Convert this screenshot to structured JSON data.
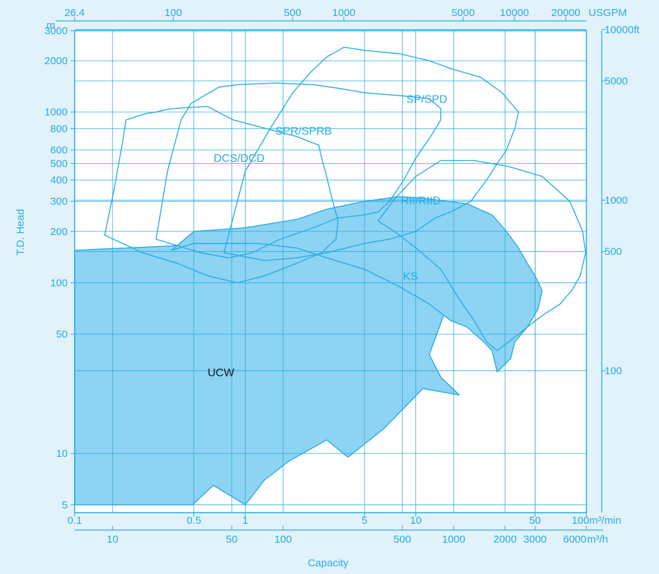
{
  "chart_data": {
    "type": "area",
    "colors": {
      "background": "#e1f2fa",
      "plot_background": "#ffffff",
      "line": "#29abe2",
      "fill": "#8dd3f3",
      "axis_text": "#29abe2",
      "dark_text": "#1a1a1a"
    },
    "x_axis_flow_m3min": {
      "scale": "log",
      "range": [
        0.1,
        100
      ],
      "ticks": [
        {
          "value": 0.1,
          "label": "0.1"
        },
        {
          "value": 0.5,
          "label": "0.5"
        },
        {
          "value": 1,
          "label": "1"
        },
        {
          "value": 5,
          "label": "5"
        },
        {
          "value": 10,
          "label": "10"
        },
        {
          "value": 50,
          "label": "50"
        },
        {
          "value": 100,
          "label": "100"
        }
      ],
      "unit": "m³/min"
    },
    "x_axis_flow_m3h": {
      "ticks": [
        {
          "value": 10,
          "label": "10"
        },
        {
          "value": 50,
          "label": "50"
        },
        {
          "value": 100,
          "label": "100"
        },
        {
          "value": 500,
          "label": "500"
        },
        {
          "value": 1000,
          "label": "1000"
        },
        {
          "value": 2000,
          "label": "2000"
        },
        {
          "value": 3000,
          "label": "3000"
        },
        {
          "value": 6000,
          "label": "6000"
        }
      ],
      "unit": "m³/h"
    },
    "x_axis_top_usgpm": {
      "ticks": [
        {
          "value": 26.4,
          "label": "26.4"
        },
        {
          "value": 100,
          "label": "100"
        },
        {
          "value": 500,
          "label": "500"
        },
        {
          "value": 1000,
          "label": "1000"
        },
        {
          "value": 5000,
          "label": "5000"
        },
        {
          "value": 10000,
          "label": "10000"
        },
        {
          "value": 20000,
          "label": "20000"
        }
      ],
      "unit": "USGPM"
    },
    "y_axis_head_m": {
      "scale": "log",
      "range": [
        4.5,
        3000
      ],
      "unit": "m",
      "ticks": [
        {
          "value": 5,
          "label": "5"
        },
        {
          "value": 10,
          "label": "10"
        },
        {
          "value": 50,
          "label": "50"
        },
        {
          "value": 100,
          "label": "100"
        },
        {
          "value": 200,
          "label": "200"
        },
        {
          "value": 300,
          "label": "300"
        },
        {
          "value": 400,
          "label": "400"
        },
        {
          "value": 500,
          "label": "500"
        },
        {
          "value": 600,
          "label": "600"
        },
        {
          "value": 800,
          "label": "800"
        },
        {
          "value": 1000,
          "label": "1000"
        },
        {
          "value": 2000,
          "label": "2000"
        },
        {
          "value": 3000,
          "label": "3000"
        }
      ],
      "label": "T.D. Head"
    },
    "y_axis_right_ft": {
      "ticks": [
        {
          "value": 100,
          "label": "100"
        },
        {
          "value": 500,
          "label": "500"
        },
        {
          "value": 1000,
          "label": "1000"
        },
        {
          "value": 5000,
          "label": "5000"
        },
        {
          "value": 10000,
          "label": "10000"
        }
      ],
      "unit": "ft"
    },
    "xlabel": "Capacity",
    "grid": true,
    "regions": [
      {
        "name": "UCW",
        "filled": true,
        "label_at": [
          0.72,
          30
        ],
        "label_dark": true,
        "boundary": [
          [
            0.1,
            155
          ],
          [
            0.4,
            165
          ],
          [
            0.5,
            170
          ],
          [
            1,
            170
          ],
          [
            1.4,
            172
          ],
          [
            2.5,
            175
          ],
          [
            5,
            175
          ],
          [
            10,
            170
          ],
          [
            15,
            150
          ],
          [
            22,
            120
          ],
          [
            24,
            60
          ],
          [
            15,
            70
          ],
          [
            12,
            38
          ],
          [
            14,
            28
          ],
          [
            18,
            22
          ],
          [
            11,
            24
          ],
          [
            6.5,
            14
          ],
          [
            4,
            9.5
          ],
          [
            3,
            12
          ],
          [
            1.8,
            9
          ],
          [
            1.3,
            7
          ],
          [
            1,
            5
          ],
          [
            0.65,
            6.5
          ],
          [
            0.49,
            5
          ],
          [
            0.1,
            5
          ]
        ]
      },
      {
        "name": "KS",
        "filled": true,
        "label_at": [
          9.3,
          110
        ],
        "label_dark": false,
        "boundary": [
          [
            0.37,
            155
          ],
          [
            0.5,
            200
          ],
          [
            1,
            210
          ],
          [
            2,
            235
          ],
          [
            3,
            270
          ],
          [
            5,
            300
          ],
          [
            8,
            320
          ],
          [
            12,
            310
          ],
          [
            20,
            290
          ],
          [
            28,
            250
          ],
          [
            34,
            200
          ],
          [
            40,
            160
          ],
          [
            45,
            130
          ],
          [
            50,
            110
          ],
          [
            55,
            90
          ],
          [
            52,
            70
          ],
          [
            45,
            55
          ],
          [
            38,
            45
          ],
          [
            36,
            36
          ],
          [
            32,
            32
          ],
          [
            30,
            30
          ],
          [
            28,
            40
          ],
          [
            25,
            45
          ],
          [
            20,
            55
          ],
          [
            16,
            60
          ],
          [
            12,
            75
          ],
          [
            8,
            95
          ],
          [
            5,
            120
          ],
          [
            3,
            140
          ],
          [
            2,
            160
          ],
          [
            1.2,
            170
          ],
          [
            0.5,
            170
          ],
          [
            0.37,
            155
          ]
        ]
      },
      {
        "name": "DCS/DCD",
        "filled": false,
        "label_at": [
          0.92,
          540
        ],
        "label_dark": false,
        "boundary": [
          [
            0.15,
            190
          ],
          [
            0.17,
            350
          ],
          [
            0.19,
            650
          ],
          [
            0.2,
            900
          ],
          [
            0.26,
            980
          ],
          [
            0.3,
            1000
          ],
          [
            0.35,
            1040
          ],
          [
            0.44,
            1060
          ],
          [
            0.6,
            1080
          ],
          [
            0.85,
            900
          ],
          [
            1.4,
            790
          ],
          [
            2,
            720
          ],
          [
            2.7,
            640
          ],
          [
            2.8,
            540
          ],
          [
            3,
            420
          ],
          [
            3.2,
            320
          ],
          [
            3.5,
            230
          ],
          [
            3.4,
            180
          ],
          [
            2.8,
            150
          ],
          [
            2,
            130
          ],
          [
            1.3,
            110
          ],
          [
            0.9,
            100
          ],
          [
            0.6,
            110
          ],
          [
            0.4,
            130
          ],
          [
            0.25,
            150
          ],
          [
            0.15,
            190
          ]
        ]
      },
      {
        "name": "SPR/SPRB",
        "filled": false,
        "label_at": [
          2.2,
          780
        ],
        "label_dark": false,
        "boundary": [
          [
            0.3,
            180
          ],
          [
            0.35,
            450
          ],
          [
            0.42,
            900
          ],
          [
            0.48,
            1120
          ],
          [
            0.6,
            1280
          ],
          [
            0.7,
            1400
          ],
          [
            0.9,
            1450
          ],
          [
            1.5,
            1480
          ],
          [
            2.5,
            1450
          ],
          [
            3.5,
            1380
          ],
          [
            5,
            1300
          ],
          [
            8,
            1250
          ],
          [
            12,
            1200
          ],
          [
            14,
            1050
          ],
          [
            14,
            900
          ],
          [
            12,
            700
          ],
          [
            10,
            540
          ],
          [
            8.5,
            400
          ],
          [
            7,
            300
          ],
          [
            6,
            260
          ],
          [
            5,
            250
          ],
          [
            3.5,
            240
          ],
          [
            2.5,
            210
          ],
          [
            1.6,
            180
          ],
          [
            1.1,
            150
          ],
          [
            0.8,
            140
          ],
          [
            0.55,
            150
          ],
          [
            0.3,
            180
          ]
        ]
      },
      {
        "name": "SP/SPD",
        "filled": false,
        "label_at": [
          11.6,
          1200
        ],
        "label_dark": false,
        "boundary": [
          [
            0.75,
            150
          ],
          [
            1,
            450
          ],
          [
            1.4,
            800
          ],
          [
            1.9,
            1300
          ],
          [
            2.4,
            1700
          ],
          [
            3,
            2100
          ],
          [
            3.8,
            2400
          ],
          [
            5,
            2300
          ],
          [
            8,
            2200
          ],
          [
            12,
            2000
          ],
          [
            16,
            1800
          ],
          [
            24,
            1600
          ],
          [
            32,
            1300
          ],
          [
            40,
            1000
          ],
          [
            38,
            800
          ],
          [
            34,
            600
          ],
          [
            30,
            500
          ],
          [
            26,
            400
          ],
          [
            21,
            300
          ],
          [
            16,
            260
          ],
          [
            13,
            240
          ],
          [
            10,
            200
          ],
          [
            7,
            180
          ],
          [
            5,
            170
          ],
          [
            3,
            150
          ],
          [
            2,
            140
          ],
          [
            1.3,
            135
          ],
          [
            0.75,
            150
          ]
        ]
      },
      {
        "name": "RII/RIID",
        "filled": false,
        "label_at": [
          10.7,
          305
        ],
        "label_dark": false,
        "boundary": [
          [
            6,
            230
          ],
          [
            7.5,
            310
          ],
          [
            10,
            420
          ],
          [
            14,
            520
          ],
          [
            22,
            520
          ],
          [
            35,
            480
          ],
          [
            55,
            420
          ],
          [
            80,
            300
          ],
          [
            95,
            200
          ],
          [
            99,
            150
          ],
          [
            92,
            110
          ],
          [
            82,
            90
          ],
          [
            70,
            75
          ],
          [
            56,
            65
          ],
          [
            45,
            55
          ],
          [
            38,
            48
          ],
          [
            30,
            40
          ],
          [
            26,
            45
          ],
          [
            22,
            60
          ],
          [
            18,
            80
          ],
          [
            14,
            120
          ],
          [
            10,
            160
          ],
          [
            7.5,
            200
          ],
          [
            6,
            230
          ]
        ]
      }
    ]
  }
}
